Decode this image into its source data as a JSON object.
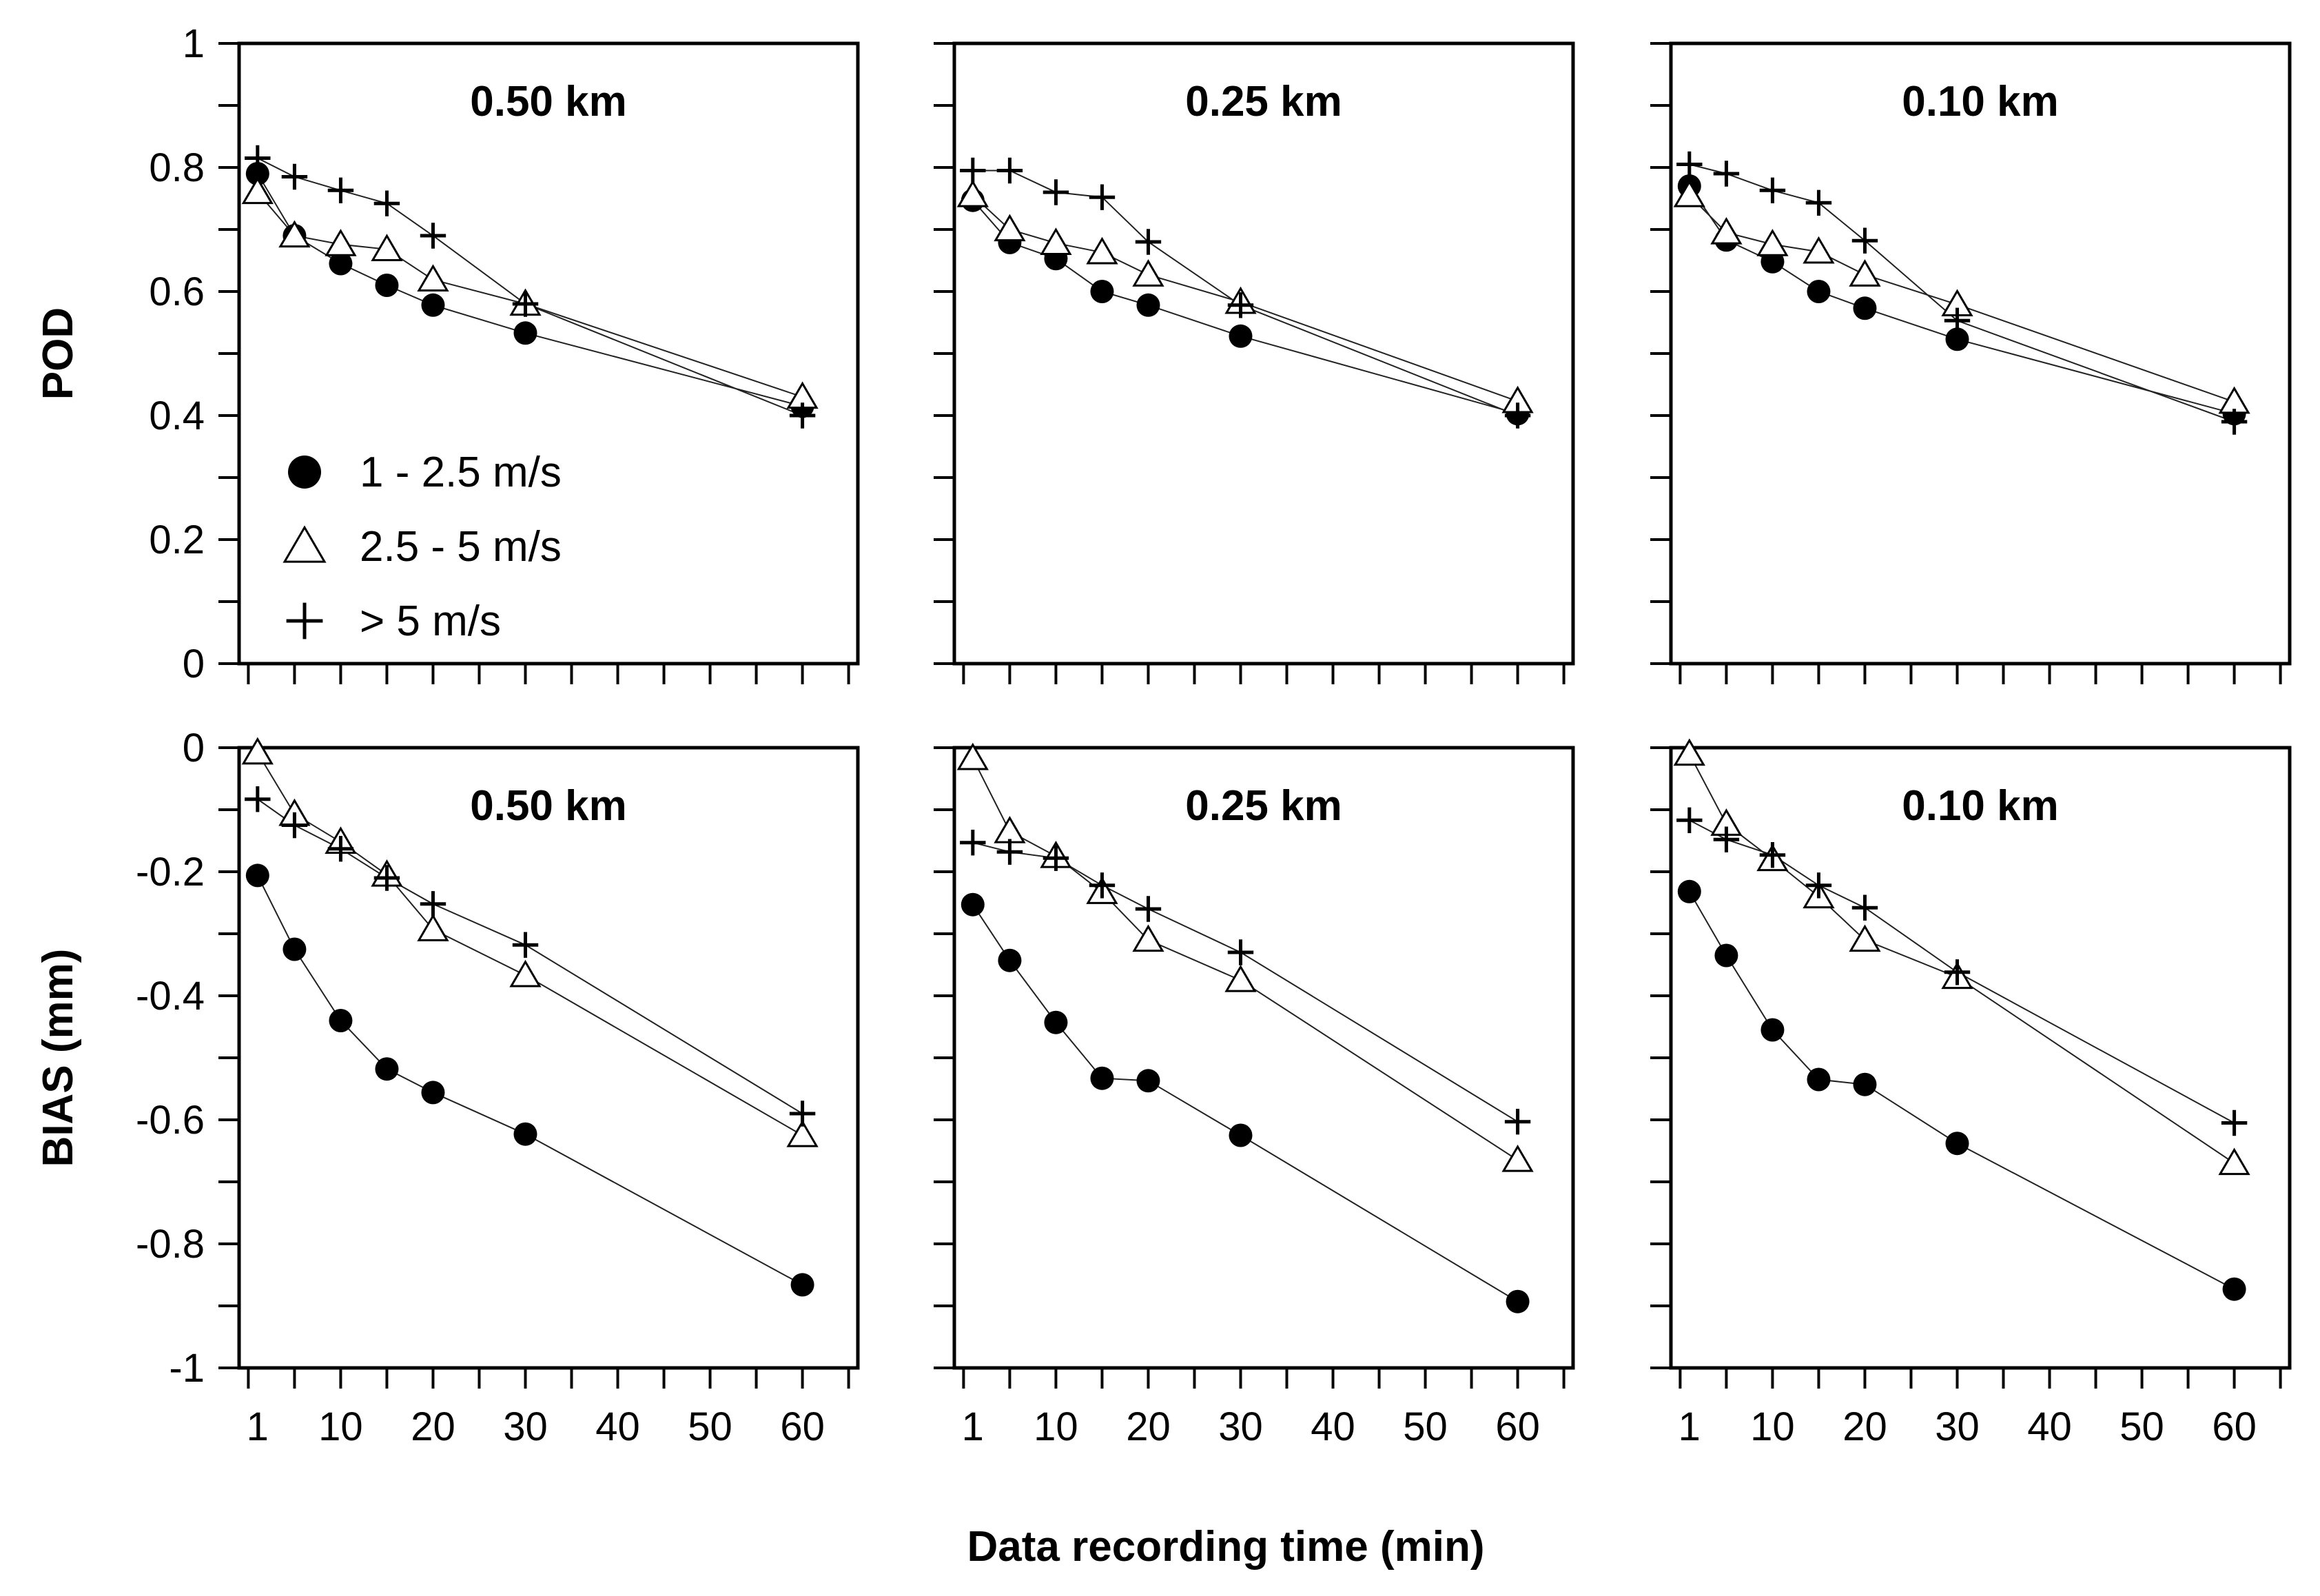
{
  "figure": {
    "xlabel": "Data recording time (min)",
    "x_ticks": [
      1,
      10,
      20,
      30,
      40,
      50,
      60
    ]
  },
  "legend": [
    {
      "key": "s1",
      "label": "1 - 2.5 m/s",
      "marker": "filled-circle"
    },
    {
      "key": "s2",
      "label": "2.5 - 5 m/s",
      "marker": "open-triangle"
    },
    {
      "key": "s3",
      "label": "> 5 m/s",
      "marker": "plus"
    }
  ],
  "chart_data": [
    {
      "type": "line",
      "row": 0,
      "col": 0,
      "title": "0.50 km",
      "ylabel": "POD",
      "ylim": [
        0,
        1
      ],
      "xlim": [
        -1,
        66
      ],
      "y_ticks": [
        0,
        0.2,
        0.4,
        0.6,
        0.8,
        1
      ],
      "y_tick_labels": [
        "0",
        "0.2",
        "0.4",
        "0.6",
        "0.8",
        "1"
      ],
      "x": [
        1,
        5,
        10,
        15,
        20,
        30,
        60
      ],
      "series": [
        {
          "key": "s1",
          "name": "1 - 2.5 m/s",
          "values": [
            0.79,
            0.69,
            0.645,
            0.61,
            0.578,
            0.533,
            0.415
          ]
        },
        {
          "key": "s2",
          "name": "2.5 - 5 m/s",
          "values": [
            0.76,
            0.69,
            0.676,
            0.668,
            0.619,
            0.58,
            0.43
          ]
        },
        {
          "key": "s3",
          "name": "> 5 m/s",
          "values": [
            0.815,
            0.785,
            0.763,
            0.742,
            0.69,
            0.58,
            0.4
          ]
        }
      ]
    },
    {
      "type": "line",
      "row": 0,
      "col": 1,
      "title": "0.25 km",
      "ylabel": "",
      "ylim": [
        0,
        1
      ],
      "xlim": [
        -1,
        66
      ],
      "y_ticks": [
        0,
        0.2,
        0.4,
        0.6,
        0.8,
        1
      ],
      "y_tick_labels": [],
      "x": [
        1,
        5,
        10,
        15,
        20,
        30,
        60
      ],
      "series": [
        {
          "key": "s1",
          "name": "1 - 2.5 m/s",
          "values": [
            0.747,
            0.679,
            0.653,
            0.6,
            0.578,
            0.528,
            0.403
          ]
        },
        {
          "key": "s2",
          "name": "2.5 - 5 m/s",
          "values": [
            0.755,
            0.7,
            0.678,
            0.663,
            0.627,
            0.583,
            0.423
          ]
        },
        {
          "key": "s3",
          "name": "> 5 m/s",
          "values": [
            0.795,
            0.795,
            0.76,
            0.752,
            0.68,
            0.578,
            0.4
          ]
        }
      ]
    },
    {
      "type": "line",
      "row": 0,
      "col": 2,
      "title": "0.10 km",
      "ylabel": "",
      "ylim": [
        0,
        1
      ],
      "xlim": [
        -1,
        66
      ],
      "y_ticks": [
        0,
        0.2,
        0.4,
        0.6,
        0.8,
        1
      ],
      "y_tick_labels": [],
      "x": [
        1,
        5,
        10,
        15,
        20,
        30,
        60
      ],
      "series": [
        {
          "key": "s1",
          "name": "1 - 2.5 m/s",
          "values": [
            0.77,
            0.683,
            0.648,
            0.6,
            0.573,
            0.523,
            0.403
          ]
        },
        {
          "key": "s2",
          "name": "2.5 - 5 m/s",
          "values": [
            0.755,
            0.695,
            0.676,
            0.664,
            0.627,
            0.579,
            0.422
          ]
        },
        {
          "key": "s3",
          "name": "> 5 m/s",
          "values": [
            0.805,
            0.79,
            0.763,
            0.743,
            0.682,
            0.553,
            0.39
          ]
        }
      ]
    },
    {
      "type": "line",
      "row": 1,
      "col": 0,
      "title": "0.50 km",
      "ylabel": "BIAS (mm)",
      "ylim": [
        -1,
        0
      ],
      "xlim": [
        -1,
        66
      ],
      "y_ticks": [
        0,
        -0.2,
        -0.4,
        -0.6,
        -0.8,
        -1
      ],
      "y_tick_labels": [
        "0",
        "-0.2",
        "-0.4",
        "-0.6",
        "-0.8",
        "-1"
      ],
      "x": [
        1,
        5,
        10,
        15,
        20,
        30,
        60
      ],
      "series": [
        {
          "key": "s1",
          "name": "1 - 2.5 m/s",
          "values": [
            -0.206,
            -0.325,
            -0.44,
            -0.518,
            -0.556,
            -0.623,
            -0.866
          ]
        },
        {
          "key": "s2",
          "name": "2.5 - 5 m/s",
          "values": [
            -0.008,
            -0.107,
            -0.152,
            -0.205,
            -0.293,
            -0.367,
            -0.625
          ]
        },
        {
          "key": "s3",
          "name": "> 5 m/s",
          "values": [
            -0.083,
            -0.125,
            -0.163,
            -0.21,
            -0.252,
            -0.318,
            -0.59
          ]
        }
      ]
    },
    {
      "type": "line",
      "row": 1,
      "col": 1,
      "title": "0.25 km",
      "ylabel": "",
      "ylim": [
        -1,
        0
      ],
      "xlim": [
        -1,
        66
      ],
      "y_ticks": [
        0,
        -0.2,
        -0.4,
        -0.6,
        -0.8,
        -1
      ],
      "y_tick_labels": [],
      "x": [
        1,
        5,
        10,
        15,
        20,
        30,
        60
      ],
      "series": [
        {
          "key": "s1",
          "name": "1 - 2.5 m/s",
          "values": [
            -0.253,
            -0.343,
            -0.443,
            -0.533,
            -0.537,
            -0.625,
            -0.893
          ]
        },
        {
          "key": "s2",
          "name": "2.5 - 5 m/s",
          "values": [
            -0.017,
            -0.135,
            -0.175,
            -0.233,
            -0.31,
            -0.375,
            -0.665
          ]
        },
        {
          "key": "s3",
          "name": "> 5 m/s",
          "values": [
            -0.153,
            -0.168,
            -0.178,
            -0.222,
            -0.26,
            -0.33,
            -0.603
          ]
        }
      ]
    },
    {
      "type": "line",
      "row": 1,
      "col": 2,
      "title": "0.10 km",
      "ylabel": "",
      "ylim": [
        -1,
        0
      ],
      "xlim": [
        -1,
        66
      ],
      "y_ticks": [
        0,
        -0.2,
        -0.4,
        -0.6,
        -0.8,
        -1
      ],
      "y_tick_labels": [],
      "x": [
        1,
        5,
        10,
        15,
        20,
        30,
        60
      ],
      "series": [
        {
          "key": "s1",
          "name": "1 - 2.5 m/s",
          "values": [
            -0.232,
            -0.335,
            -0.455,
            -0.535,
            -0.543,
            -0.638,
            -0.873
          ]
        },
        {
          "key": "s2",
          "name": "2.5 - 5 m/s",
          "values": [
            -0.01,
            -0.123,
            -0.18,
            -0.24,
            -0.31,
            -0.37,
            -0.67
          ]
        },
        {
          "key": "s3",
          "name": "> 5 m/s",
          "values": [
            -0.117,
            -0.148,
            -0.173,
            -0.222,
            -0.258,
            -0.362,
            -0.605
          ]
        }
      ]
    }
  ]
}
